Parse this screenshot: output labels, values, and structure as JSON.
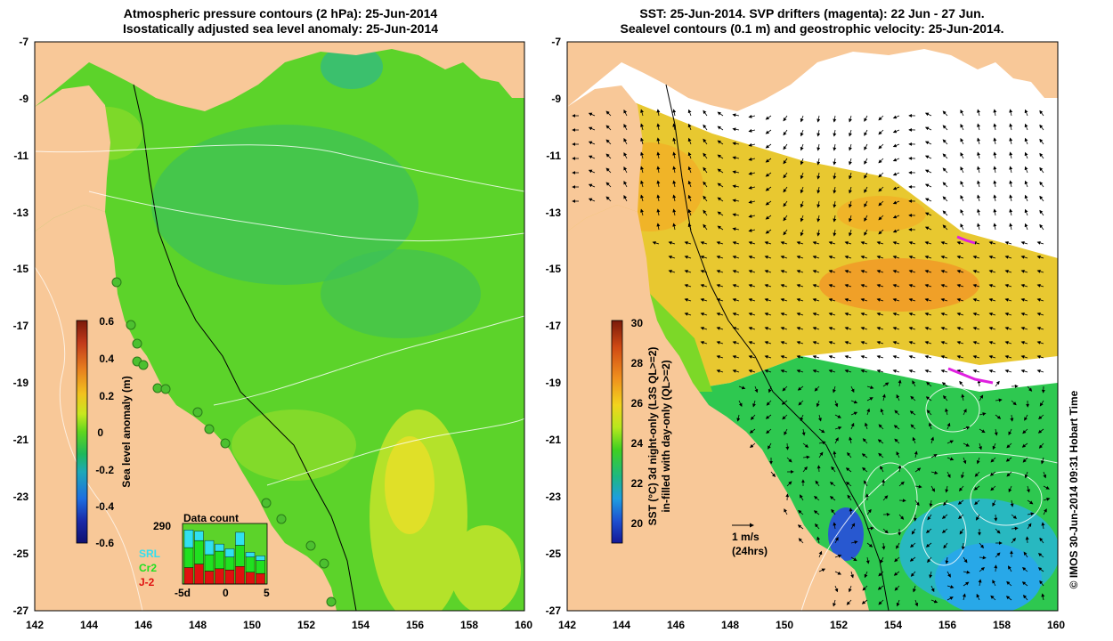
{
  "left_panel": {
    "title_line1": "Atmospheric pressure contours (2 hPa): 25-Jun-2014",
    "title_line2": "Isostatically adjusted sea level anomaly: 25-Jun-2014",
    "y_ticks": [
      "-7",
      "-9",
      "-11",
      "-13",
      "-15",
      "-17",
      "-19",
      "-21",
      "-23",
      "-25",
      "-27"
    ],
    "x_ticks": [
      "142",
      "144",
      "146",
      "148",
      "150",
      "152",
      "154",
      "156",
      "158",
      "160"
    ],
    "colorbar": {
      "label": "Sea level anomaly (m)",
      "ticks": [
        "0.6",
        "0.4",
        "0.2",
        "0",
        "-0.2",
        "-0.4",
        "-0.6"
      ],
      "colors": [
        "#7a1a0a",
        "#c23a1a",
        "#e8801e",
        "#f2c21e",
        "#c8e81e",
        "#5fd61e",
        "#1eb85a",
        "#1ea8b8",
        "#1e6ee0",
        "#1a2aa8",
        "#101070"
      ]
    },
    "inset": {
      "title": "Data count",
      "max_label": "290",
      "x_labels": [
        "-5d",
        "0",
        "5"
      ],
      "legend": [
        {
          "label": "SRL",
          "color": "#30e0f0"
        },
        {
          "label": "Cr2",
          "color": "#20e020"
        },
        {
          "label": "J-2",
          "color": "#e01010"
        }
      ],
      "bars": [
        {
          "j2": 0.28,
          "cr2": 0.34,
          "srl": 0.3
        },
        {
          "j2": 0.34,
          "cr2": 0.4,
          "srl": 0.16
        },
        {
          "j2": 0.22,
          "cr2": 0.28,
          "srl": 0.24
        },
        {
          "j2": 0.26,
          "cr2": 0.3,
          "srl": 0.12
        },
        {
          "j2": 0.24,
          "cr2": 0.22,
          "srl": 0.14
        },
        {
          "j2": 0.3,
          "cr2": 0.36,
          "srl": 0.22
        },
        {
          "j2": 0.2,
          "cr2": 0.26,
          "srl": 0.08
        },
        {
          "j2": 0.18,
          "cr2": 0.22,
          "srl": 0.08
        }
      ]
    }
  },
  "right_panel": {
    "title_line1": "SST: 25-Jun-2014. SVP drifters (magenta): 22 Jun - 27 Jun.",
    "title_line2": "Sealevel contours (0.1 m) and geostrophic velocity: 25-Jun-2014.",
    "y_ticks": [
      "-7",
      "-9",
      "-11",
      "-13",
      "-15",
      "-17",
      "-19",
      "-21",
      "-23",
      "-25",
      "-27"
    ],
    "x_ticks": [
      "142",
      "144",
      "146",
      "148",
      "150",
      "152",
      "154",
      "156",
      "158",
      "160"
    ],
    "colorbar": {
      "label_line1": "SST (°C) 3d night-only (L3S QL>=2)",
      "label_line2": "in-filled with day-only (QL>=2)",
      "ticks": [
        "30",
        "28",
        "26",
        "24",
        "22",
        "20"
      ],
      "colors": [
        "#7a1a0a",
        "#d04a14",
        "#f0901e",
        "#f2d41e",
        "#b8e81e",
        "#40d020",
        "#1eb880",
        "#1e9ee0",
        "#1e50d0",
        "#141896"
      ]
    },
    "scale_arrow": {
      "speed": "1 m/s",
      "period": "(24hrs)"
    }
  },
  "colors": {
    "land": "#f8c898",
    "ocean_green": "#5cd32a",
    "ocean_light": "#9ee02a",
    "sst_orange": "#f0b428",
    "sst_yellow": "#e8dc28",
    "sst_green": "#2ec850",
    "sst_blue": "#28a8e8",
    "drifter": "#e020e0"
  },
  "credit": "© IMOS 30-Jun-2014 09:31 Hobart Time"
}
